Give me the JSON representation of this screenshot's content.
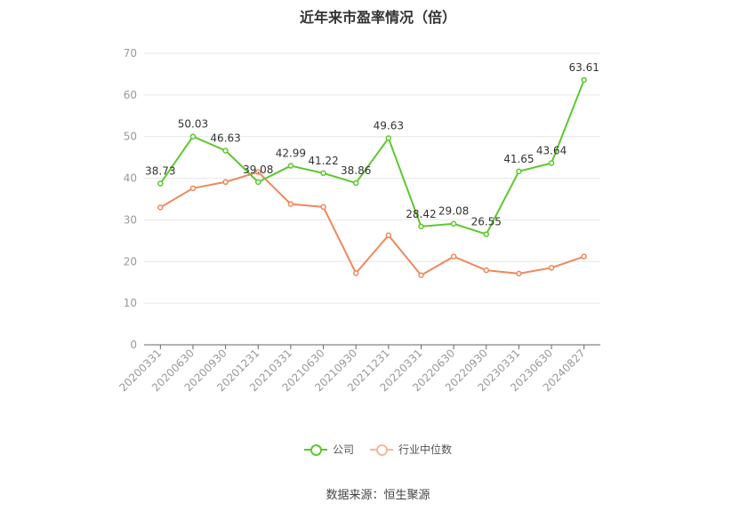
{
  "chart_data": {
    "type": "line",
    "title": "近年来市盈率情况（倍）",
    "categories": [
      "20200331",
      "20200630",
      "20200930",
      "20201231",
      "20210331",
      "20210630",
      "20210930",
      "20211231",
      "20220331",
      "20220630",
      "20220930",
      "20230331",
      "20230630",
      "20240827"
    ],
    "series": [
      {
        "name": "公司",
        "color": "#5cc82e",
        "values": [
          38.73,
          50.03,
          46.63,
          39.08,
          42.99,
          41.22,
          38.86,
          49.63,
          28.42,
          29.08,
          26.55,
          41.65,
          43.64,
          63.61
        ],
        "labels": [
          "38.73",
          "50.03",
          "46.63",
          "39.08",
          "42.99",
          "41.22",
          "38.86",
          "49.63",
          "28.42",
          "29.08",
          "26.55",
          "41.65",
          "43.64",
          "63.61"
        ]
      },
      {
        "name": "行业中位数",
        "color": "#f0875a",
        "values": [
          33.0,
          37.6,
          39.1,
          41.5,
          33.8,
          33.1,
          17.2,
          26.3,
          16.7,
          21.2,
          17.9,
          17.1,
          18.5,
          21.2
        ]
      }
    ],
    "ylim": [
      0,
      70
    ],
    "yticks": [
      0,
      10,
      20,
      30,
      40,
      50,
      60,
      70
    ],
    "grid": true,
    "legend_position": "bottom"
  },
  "source": "数据来源：恒生聚源"
}
